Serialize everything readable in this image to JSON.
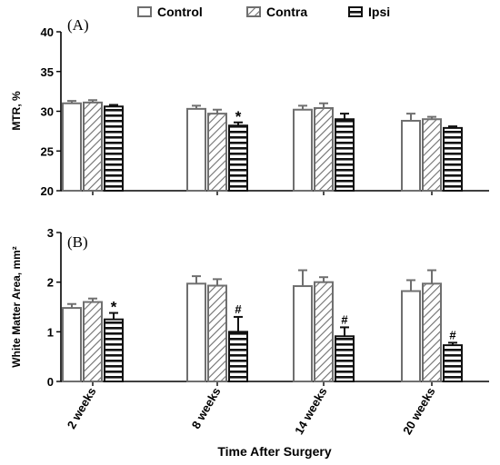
{
  "legend": {
    "items": [
      {
        "label": "Control",
        "pattern": "open"
      },
      {
        "label": "Contra",
        "pattern": "hatch"
      },
      {
        "label": "Ipsi",
        "pattern": "stripes"
      }
    ]
  },
  "series_colors": {
    "Control": "#6f6f6f",
    "Contra": "#6f6f6f",
    "Ipsi": "#111111"
  },
  "xlabel": "Time After Surgery",
  "chart_data": [
    {
      "type": "bar",
      "panel_label": "(A)",
      "ylabel": "MTR, %",
      "ylim": [
        20,
        40
      ],
      "yticks": [
        20,
        25,
        30,
        35,
        40
      ],
      "categories": [
        "2 weeks",
        "8 weeks",
        "14 weeks",
        "20 weeks"
      ],
      "series": [
        {
          "name": "Control",
          "values": [
            31.0,
            30.3,
            30.2,
            28.8
          ],
          "errors": [
            0.3,
            0.4,
            0.5,
            0.9
          ]
        },
        {
          "name": "Contra",
          "values": [
            31.1,
            29.7,
            30.4,
            29.0
          ],
          "errors": [
            0.3,
            0.5,
            0.6,
            0.3
          ]
        },
        {
          "name": "Ipsi",
          "values": [
            30.6,
            28.2,
            29.0,
            27.9
          ],
          "errors": [
            0.2,
            0.4,
            0.7,
            0.2
          ]
        }
      ],
      "annotations": [
        {
          "category": "8 weeks",
          "series": "Ipsi",
          "text": "*"
        }
      ]
    },
    {
      "type": "bar",
      "panel_label": "(B)",
      "ylabel": "White Matter Area, mm²",
      "ylim": [
        0,
        3
      ],
      "yticks": [
        0,
        1,
        2,
        3
      ],
      "categories": [
        "2 weeks",
        "8 weeks",
        "14 weeks",
        "20 weeks"
      ],
      "series": [
        {
          "name": "Control",
          "values": [
            1.48,
            1.97,
            1.92,
            1.82
          ],
          "errors": [
            0.08,
            0.15,
            0.32,
            0.22
          ]
        },
        {
          "name": "Contra",
          "values": [
            1.6,
            1.93,
            2.0,
            1.97
          ],
          "errors": [
            0.07,
            0.13,
            0.1,
            0.27
          ]
        },
        {
          "name": "Ipsi",
          "values": [
            1.25,
            1.0,
            0.91,
            0.73
          ],
          "errors": [
            0.13,
            0.3,
            0.18,
            0.05
          ]
        }
      ],
      "annotations": [
        {
          "category": "2 weeks",
          "series": "Ipsi",
          "text": "*"
        },
        {
          "category": "8 weeks",
          "series": "Ipsi",
          "text": "#"
        },
        {
          "category": "14 weeks",
          "series": "Ipsi",
          "text": "#"
        },
        {
          "category": "20 weeks",
          "series": "Ipsi",
          "text": "#"
        }
      ]
    }
  ]
}
